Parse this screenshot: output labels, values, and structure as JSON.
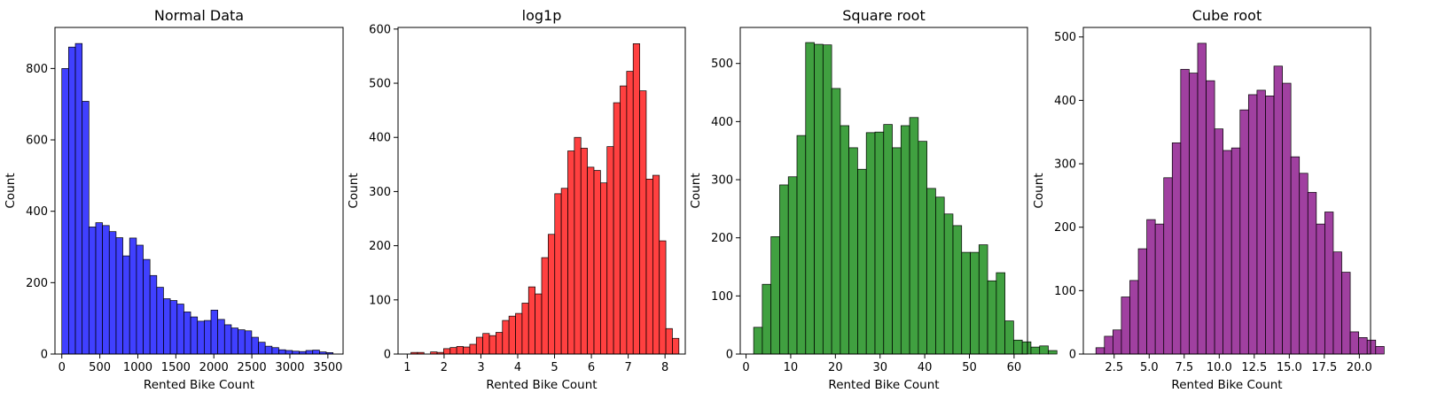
{
  "chart_data": [
    {
      "type": "histogram",
      "title": "Normal Data",
      "xlabel": "Rented Bike Count",
      "ylabel": "Count",
      "color": "#0000ff",
      "bin_start": 0,
      "bin_width": 89.2,
      "values": [
        800,
        860,
        870,
        708,
        356,
        368,
        360,
        343,
        326,
        275,
        325,
        305,
        265,
        220,
        187,
        155,
        150,
        140,
        118,
        104,
        92,
        94,
        123,
        97,
        82,
        73,
        68,
        65,
        47,
        33,
        22,
        18,
        12,
        10,
        8,
        7,
        10,
        11,
        6,
        4
      ],
      "xlim": [
        -90,
        3700
      ],
      "ylim": [
        0,
        915
      ],
      "xticks": [
        0,
        500,
        1000,
        1500,
        2000,
        2500,
        3000,
        3500
      ],
      "yticks": [
        0,
        200,
        400,
        600,
        800
      ]
    },
    {
      "type": "histogram",
      "title": "log1p",
      "xlabel": "Rented Bike Count",
      "ylabel": "Count",
      "color": "#ff0000",
      "bin_start": 1.1,
      "bin_width": 0.1775,
      "values": [
        3,
        3,
        0,
        4,
        3,
        10,
        12,
        14,
        13,
        18,
        31,
        38,
        34,
        40,
        62,
        70,
        75,
        94,
        124,
        111,
        178,
        221,
        296,
        306,
        375,
        400,
        380,
        345,
        339,
        316,
        383,
        464,
        495,
        522,
        573,
        486,
        323,
        330,
        209,
        47,
        29
      ],
      "xlim": [
        0.75,
        8.55
      ],
      "ylim": [
        0,
        603
      ],
      "xticks": [
        1,
        2,
        3,
        4,
        5,
        6,
        7,
        8
      ],
      "yticks": [
        0,
        100,
        200,
        300,
        400,
        500,
        600
      ]
    },
    {
      "type": "histogram",
      "title": "Square root",
      "xlabel": "Rented Bike Count",
      "ylabel": "Count",
      "color": "#008000",
      "bin_start": 1.7,
      "bin_width": 1.94,
      "values": [
        46,
        120,
        202,
        291,
        305,
        376,
        536,
        533,
        532,
        457,
        393,
        355,
        318,
        381,
        382,
        395,
        355,
        393,
        407,
        366,
        285,
        270,
        241,
        221,
        175,
        175,
        188,
        126,
        140,
        57,
        24,
        21,
        12,
        14,
        6
      ],
      "xlim": [
        -1.3,
        63.0
      ],
      "ylim": [
        0,
        562
      ],
      "xticks": [
        0,
        10,
        20,
        30,
        40,
        50,
        60
      ],
      "yticks": [
        0,
        100,
        200,
        300,
        400,
        500
      ]
    },
    {
      "type": "histogram",
      "title": "Cube root",
      "xlabel": "Rented Bike Count",
      "ylabel": "Count",
      "color": "#800080",
      "bin_start": 1.2,
      "bin_width": 0.605,
      "values": [
        10,
        28,
        38,
        90,
        116,
        166,
        212,
        205,
        278,
        333,
        449,
        443,
        490,
        431,
        355,
        321,
        325,
        385,
        409,
        416,
        407,
        454,
        427,
        311,
        285,
        255,
        205,
        224,
        161,
        129,
        35,
        26,
        22,
        12
      ],
      "xlim": [
        0.3,
        20.8
      ],
      "ylim": [
        0,
        515
      ],
      "xticks": [
        2.5,
        5.0,
        7.5,
        10.0,
        12.5,
        15.0,
        17.5,
        20.0
      ],
      "yticks": [
        0,
        100,
        200,
        300,
        400,
        500
      ]
    }
  ]
}
